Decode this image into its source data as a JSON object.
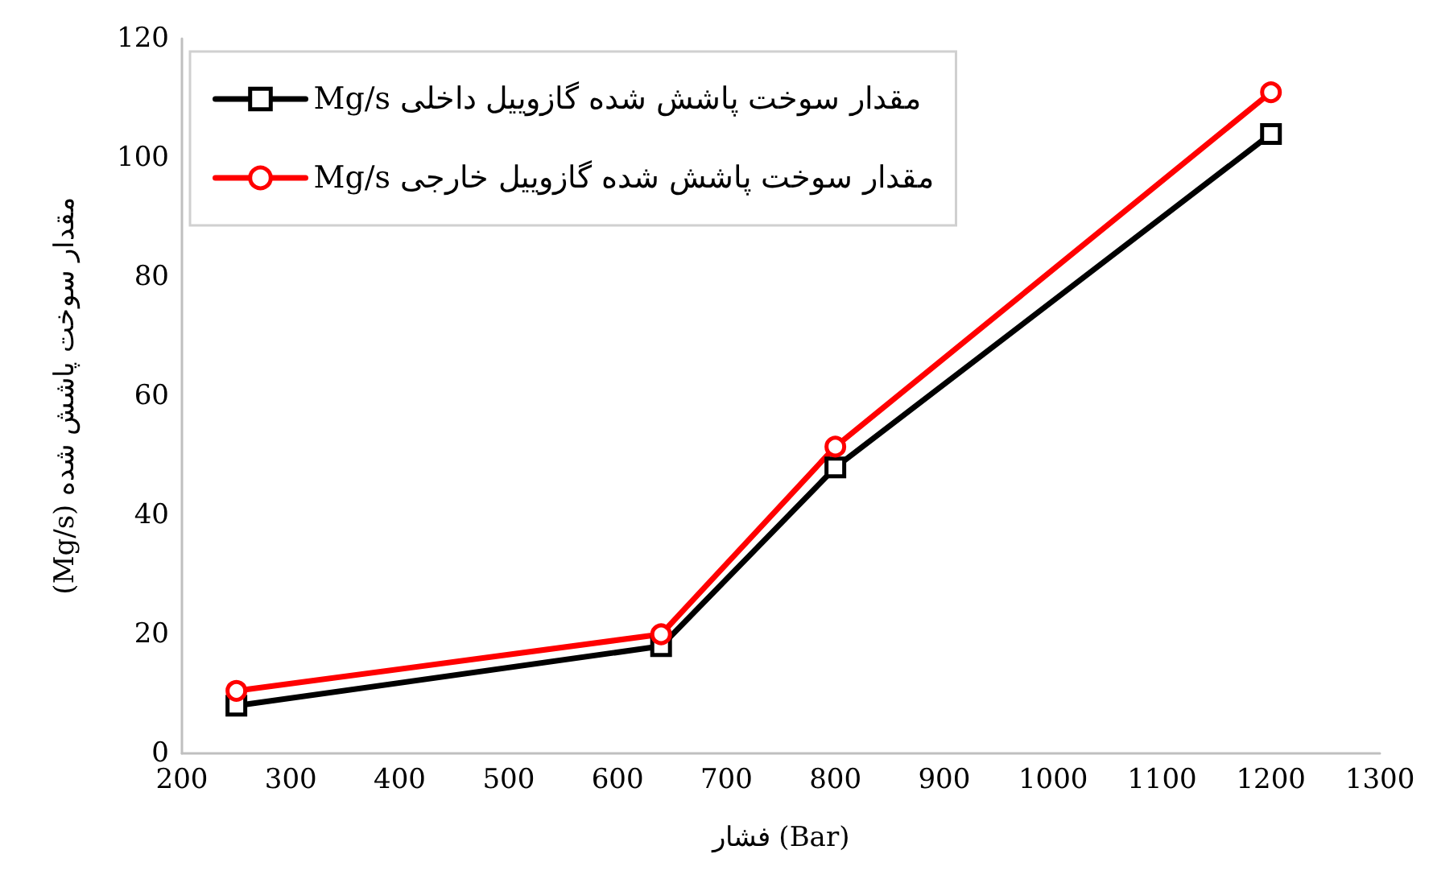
{
  "chart_data": {
    "type": "line",
    "xlabel": "فشار (Bar)",
    "ylabel": "(Mg/s) مقدار سوخت پاشش شده",
    "x": [
      250,
      640,
      800,
      1200
    ],
    "series": [
      {
        "name": "Mg/s مقدار سوخت پاشش شده گازوییل داخلی",
        "color": "#000000",
        "marker": "square",
        "values": [
          8,
          18,
          48,
          104
        ]
      },
      {
        "name": "Mg/s مقدار سوخت پاشش شده گازوییل خارجی",
        "color": "#ff0000",
        "marker": "circle",
        "values": [
          10.5,
          20,
          51.5,
          111
        ]
      }
    ],
    "xlim": [
      200,
      1300
    ],
    "xticks": [
      200,
      300,
      400,
      500,
      600,
      700,
      800,
      900,
      1000,
      1100,
      1200,
      1300
    ],
    "ylim": [
      0,
      120
    ],
    "yticks": [
      0,
      20,
      40,
      60,
      80,
      100,
      120
    ],
    "grid": false,
    "legend": "top left",
    "line_style": "solid"
  }
}
